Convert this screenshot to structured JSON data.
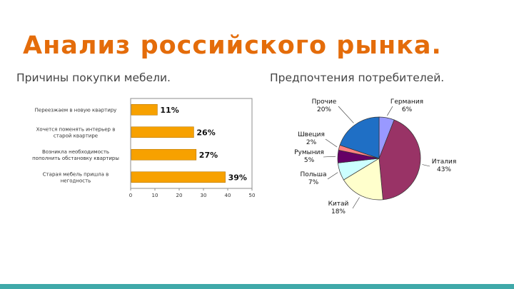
{
  "slide": {
    "title": "Анализ российского рынка.",
    "left_caption": "Причины покупки мебели.",
    "right_caption": "Предпочтения потребителей.",
    "accent_color": "#e46c0a",
    "footer_color": "#3fa9a9"
  },
  "chart_data": [
    {
      "type": "bar",
      "orientation": "horizontal",
      "categories": [
        [
          "Переезжаем в новую квартиру"
        ],
        [
          "Хочется поменять интерьер в",
          "старой квартире"
        ],
        [
          "Возникла необходимость",
          "пополнить обстановку квартиры"
        ],
        [
          "Старая мебель пришла в",
          "негодность"
        ]
      ],
      "values": [
        11,
        26,
        27,
        39
      ],
      "data_labels": [
        "11%",
        "26%",
        "27%",
        "39%"
      ],
      "xlim": [
        0,
        50
      ],
      "xticks": [
        "0",
        "10",
        "20",
        "30",
        "40",
        "50"
      ],
      "bar_color": "#f7a100",
      "grid": false
    },
    {
      "type": "pie",
      "slices": [
        {
          "label": "Германия",
          "pct_label": "6%",
          "value": 6,
          "color": "#9999ff"
        },
        {
          "label": "Италия",
          "pct_label": "43%",
          "value": 43,
          "color": "#993366"
        },
        {
          "label": "Китай",
          "pct_label": "18%",
          "value": 18,
          "color": "#ffffcc"
        },
        {
          "label": "Польша",
          "pct_label": "7%",
          "value": 7,
          "color": "#ccffff"
        },
        {
          "label": "Румыния",
          "pct_label": "5%",
          "value": 5,
          "color": "#660066"
        },
        {
          "label": "Швеция",
          "pct_label": "2%",
          "value": 2,
          "color": "#ff8080"
        },
        {
          "label": "Прочие",
          "pct_label": "20%",
          "value": 20,
          "color": "#1f6fc5"
        }
      ]
    }
  ]
}
